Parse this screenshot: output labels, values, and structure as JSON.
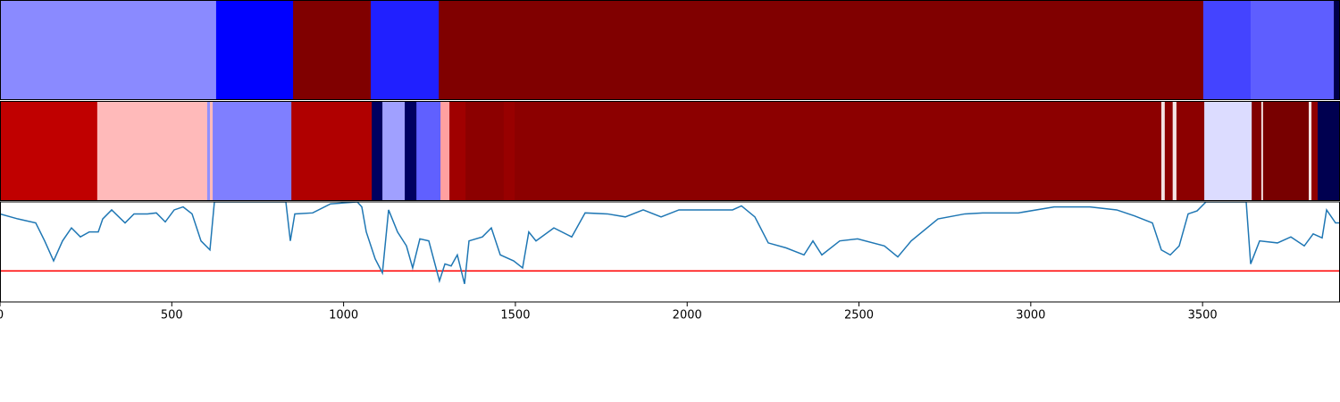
{
  "chart_data": {
    "type": "segments",
    "xlim": [
      0,
      3900
    ],
    "xticks": [
      0,
      500,
      1000,
      1500,
      2000,
      2500,
      3000,
      3500
    ],
    "bands": [
      {
        "segments": [
          {
            "start": 0,
            "end": 629,
            "color": "#8a8aff"
          },
          {
            "start": 629,
            "end": 853,
            "color": "#0000ff"
          },
          {
            "start": 853,
            "end": 1079,
            "color": "#800000"
          },
          {
            "start": 1079,
            "end": 1277,
            "color": "#2020ff"
          },
          {
            "start": 1277,
            "end": 3502,
            "color": "#800000"
          },
          {
            "start": 3502,
            "end": 3640,
            "color": "#4444ff"
          },
          {
            "start": 3640,
            "end": 3882,
            "color": "#5e5eff"
          },
          {
            "start": 3882,
            "end": 3900,
            "color": "#00004a"
          }
        ]
      },
      {
        "segments": [
          {
            "start": 0,
            "end": 283,
            "color": "#c00000"
          },
          {
            "start": 283,
            "end": 603,
            "color": "#ffbaba"
          },
          {
            "start": 603,
            "end": 611,
            "color": "#9090ff"
          },
          {
            "start": 611,
            "end": 619,
            "color": "#ffbaba"
          },
          {
            "start": 619,
            "end": 848,
            "color": "#7f7fff"
          },
          {
            "start": 848,
            "end": 1082,
            "color": "#b00000"
          },
          {
            "start": 1082,
            "end": 1113,
            "color": "#000060"
          },
          {
            "start": 1113,
            "end": 1178,
            "color": "#a0a0ff"
          },
          {
            "start": 1178,
            "end": 1212,
            "color": "#000060"
          },
          {
            "start": 1212,
            "end": 1282,
            "color": "#6060ff"
          },
          {
            "start": 1282,
            "end": 1308,
            "color": "#ffa0a0"
          },
          {
            "start": 1308,
            "end": 1355,
            "color": "#a00000"
          },
          {
            "start": 1355,
            "end": 1466,
            "color": "#8c0000"
          },
          {
            "start": 1466,
            "end": 1498,
            "color": "#980000"
          },
          {
            "start": 1498,
            "end": 3380,
            "color": "#8c0000"
          },
          {
            "start": 3380,
            "end": 3390,
            "color": "#f4e4e4"
          },
          {
            "start": 3390,
            "end": 3413,
            "color": "#8c0000"
          },
          {
            "start": 3413,
            "end": 3424,
            "color": "#f4e4e4"
          },
          {
            "start": 3424,
            "end": 3505,
            "color": "#8c0000"
          },
          {
            "start": 3505,
            "end": 3643,
            "color": "#dcdcff"
          },
          {
            "start": 3643,
            "end": 3671,
            "color": "#800000"
          },
          {
            "start": 3671,
            "end": 3676,
            "color": "#f4e4e4"
          },
          {
            "start": 3676,
            "end": 3809,
            "color": "#780000"
          },
          {
            "start": 3809,
            "end": 3817,
            "color": "#f4e4e4"
          },
          {
            "start": 3817,
            "end": 3835,
            "color": "#900000"
          },
          {
            "start": 3835,
            "end": 3900,
            "color": "#000050"
          }
        ]
      }
    ],
    "line": {
      "color": "#1f77b4",
      "x": [
        0,
        52,
        104,
        130,
        156,
        182,
        208,
        234,
        260,
        286,
        299,
        325,
        364,
        390,
        429,
        455,
        481,
        507,
        533,
        559,
        585,
        611,
        624,
        832,
        845,
        858,
        910,
        962,
        1040,
        1053,
        1066,
        1092,
        1113,
        1131,
        1157,
        1183,
        1201,
        1222,
        1248,
        1279,
        1295,
        1313,
        1331,
        1352,
        1365,
        1404,
        1430,
        1456,
        1495,
        1521,
        1539,
        1560,
        1612,
        1664,
        1703,
        1768,
        1820,
        1872,
        1924,
        1976,
        2054,
        2132,
        2158,
        2197,
        2236,
        2288,
        2340,
        2366,
        2392,
        2444,
        2496,
        2574,
        2613,
        2652,
        2730,
        2808,
        2860,
        2964,
        3068,
        3172,
        3250,
        3302,
        3354,
        3380,
        3406,
        3432,
        3458,
        3484,
        3510,
        3627,
        3640,
        3666,
        3718,
        3757,
        3796,
        3822,
        3848,
        3861,
        3887,
        3900
      ],
      "values": [
        0.88,
        0.83,
        0.79,
        0.61,
        0.41,
        0.61,
        0.74,
        0.65,
        0.7,
        0.7,
        0.83,
        0.92,
        0.79,
        0.88,
        0.88,
        0.89,
        0.8,
        0.92,
        0.95,
        0.88,
        0.61,
        0.52,
        1.0,
        1.0,
        0.61,
        0.88,
        0.89,
        0.98,
        1.0,
        0.95,
        0.7,
        0.43,
        0.29,
        0.92,
        0.7,
        0.56,
        0.34,
        0.63,
        0.61,
        0.21,
        0.38,
        0.36,
        0.47,
        0.18,
        0.61,
        0.65,
        0.74,
        0.47,
        0.41,
        0.34,
        0.7,
        0.61,
        0.74,
        0.65,
        0.89,
        0.88,
        0.85,
        0.92,
        0.85,
        0.92,
        0.92,
        0.92,
        0.96,
        0.85,
        0.59,
        0.54,
        0.47,
        0.61,
        0.47,
        0.61,
        0.63,
        0.56,
        0.45,
        0.61,
        0.83,
        0.88,
        0.89,
        0.89,
        0.95,
        0.95,
        0.92,
        0.86,
        0.79,
        0.52,
        0.47,
        0.56,
        0.88,
        0.91,
        1.0,
        1.0,
        0.38,
        0.61,
        0.59,
        0.65,
        0.56,
        0.68,
        0.64,
        0.92,
        0.79,
        0.79
      ]
    },
    "ylim": [
      0,
      1
    ],
    "threshold": {
      "value": 0.31,
      "color": "#ff0000"
    }
  }
}
